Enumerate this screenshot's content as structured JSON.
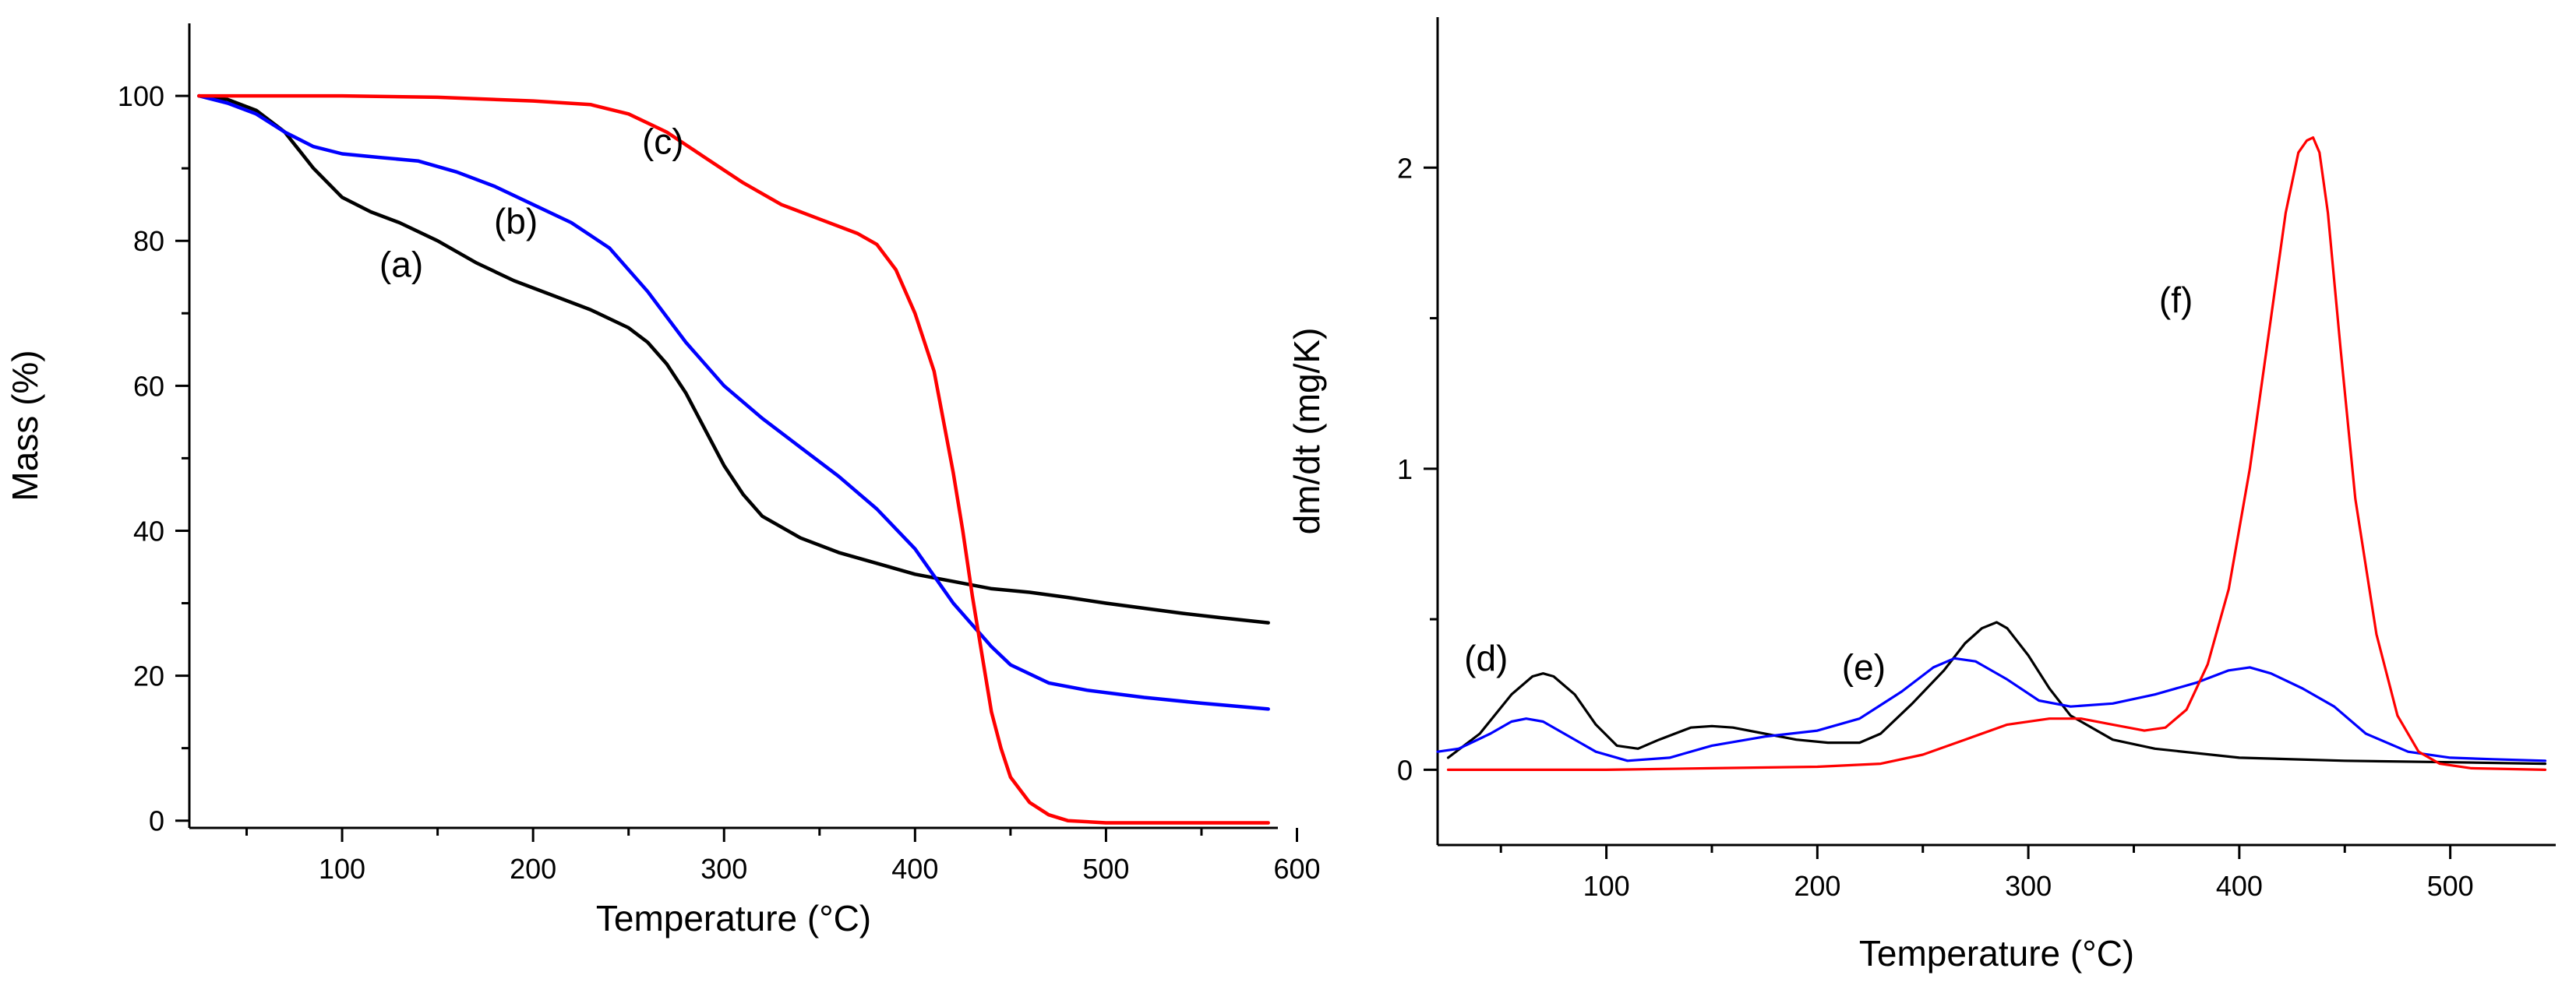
{
  "chart_data": [
    {
      "type": "line",
      "title": "",
      "xlabel": "Temperature (°C)",
      "ylabel": "Mass (%)",
      "xlim": [
        20,
        590
      ],
      "ylim": [
        -1,
        110
      ],
      "x_ticks": [
        100,
        200,
        300,
        400,
        500,
        600
      ],
      "x_minor_ticks": [
        50,
        150,
        250,
        350,
        450,
        550
      ],
      "y_ticks": [
        0,
        20,
        40,
        60,
        80,
        100
      ],
      "y_minor_ticks": [
        10,
        30,
        50,
        70,
        90
      ],
      "grid": false,
      "legend": "none",
      "series": [
        {
          "color": "#000000",
          "x": [
            25,
            40,
            55,
            70,
            85,
            100,
            115,
            130,
            150,
            170,
            190,
            210,
            230,
            250,
            260,
            270,
            280,
            290,
            300,
            310,
            320,
            340,
            360,
            380,
            400,
            420,
            440,
            460,
            480,
            500,
            520,
            540,
            560,
            585
          ],
          "y": [
            100,
            99.5,
            98,
            95,
            90,
            86,
            84,
            82.5,
            80,
            77,
            74.5,
            72.5,
            70.5,
            68,
            66,
            63,
            59,
            54,
            49,
            45,
            42,
            39,
            37,
            35.5,
            34,
            33,
            32,
            31.5,
            30.8,
            30,
            29.3,
            28.6,
            28,
            27.3
          ]
        },
        {
          "color": "#0000ff",
          "x": [
            25,
            40,
            55,
            70,
            85,
            100,
            120,
            140,
            160,
            180,
            200,
            220,
            240,
            260,
            280,
            300,
            320,
            340,
            360,
            380,
            400,
            420,
            430,
            440,
            450,
            470,
            490,
            520,
            550,
            585
          ],
          "y": [
            100,
            99,
            97.5,
            95,
            93,
            92,
            91.5,
            91,
            89.5,
            87.5,
            85,
            82.5,
            79,
            73,
            66,
            60,
            55.5,
            51.5,
            47.5,
            43,
            37.5,
            30,
            27,
            24,
            21.5,
            19,
            18,
            17,
            16.2,
            15.4
          ]
        },
        {
          "color": "#ff0000",
          "x": [
            25,
            100,
            150,
            200,
            230,
            250,
            270,
            290,
            310,
            330,
            350,
            370,
            380,
            390,
            400,
            410,
            420,
            425,
            430,
            435,
            440,
            445,
            450,
            460,
            470,
            480,
            500,
            550,
            585
          ],
          "y": [
            100,
            100,
            99.8,
            99.3,
            98.8,
            97.5,
            95,
            91.5,
            88,
            85,
            83,
            81,
            79.5,
            76,
            70,
            62,
            48,
            40,
            31,
            23,
            15,
            10,
            6,
            2.5,
            0.8,
            0,
            -0.3,
            -0.3,
            -0.3
          ]
        }
      ],
      "annotations": [
        {
          "text": "(a)",
          "x": 131,
          "y": 75
        },
        {
          "text": "(b)",
          "x": 191,
          "y": 81
        },
        {
          "text": "(c)",
          "x": 268,
          "y": 92
        }
      ]
    },
    {
      "type": "line",
      "title": "",
      "xlabel": "Temperature (°C)",
      "ylabel": "dm/dt (mg/K)",
      "xlim": [
        20,
        550
      ],
      "ylim": [
        -0.25,
        2.5
      ],
      "x_ticks": [
        100,
        200,
        300,
        400,
        500
      ],
      "x_minor_ticks": [
        50,
        150,
        250,
        350,
        450
      ],
      "y_ticks": [
        0,
        1,
        2
      ],
      "y_minor_ticks": [
        0.5,
        1.5
      ],
      "grid": false,
      "legend": "none",
      "series": [
        {
          "color": "#000000",
          "x": [
            25,
            40,
            55,
            65,
            70,
            75,
            85,
            95,
            105,
            115,
            125,
            140,
            150,
            160,
            175,
            190,
            205,
            220,
            230,
            245,
            260,
            270,
            278,
            285,
            290,
            300,
            310,
            320,
            340,
            360,
            400,
            450,
            500,
            545
          ],
          "y": [
            0.04,
            0.12,
            0.25,
            0.31,
            0.32,
            0.31,
            0.25,
            0.15,
            0.08,
            0.07,
            0.1,
            0.14,
            0.145,
            0.14,
            0.12,
            0.1,
            0.09,
            0.09,
            0.12,
            0.22,
            0.33,
            0.42,
            0.47,
            0.49,
            0.47,
            0.38,
            0.27,
            0.18,
            0.1,
            0.07,
            0.04,
            0.03,
            0.025,
            0.02
          ]
        },
        {
          "color": "#0000ff",
          "x": [
            20,
            30,
            45,
            55,
            62,
            70,
            80,
            95,
            110,
            130,
            150,
            175,
            200,
            220,
            240,
            255,
            265,
            275,
            290,
            305,
            320,
            340,
            360,
            380,
            395,
            405,
            415,
            430,
            445,
            460,
            480,
            500,
            520,
            545
          ],
          "y": [
            0.06,
            0.07,
            0.12,
            0.16,
            0.17,
            0.16,
            0.12,
            0.06,
            0.03,
            0.04,
            0.08,
            0.11,
            0.13,
            0.17,
            0.26,
            0.34,
            0.37,
            0.36,
            0.3,
            0.23,
            0.21,
            0.22,
            0.25,
            0.29,
            0.33,
            0.34,
            0.32,
            0.27,
            0.21,
            0.12,
            0.06,
            0.04,
            0.035,
            0.03
          ]
        },
        {
          "color": "#ff0000",
          "x": [
            25,
            100,
            150,
            200,
            230,
            250,
            270,
            290,
            310,
            325,
            340,
            355,
            365,
            375,
            385,
            395,
            405,
            415,
            422,
            428,
            432,
            435,
            438,
            442,
            448,
            455,
            465,
            475,
            485,
            495,
            510,
            545
          ],
          "y": [
            0,
            0,
            0.005,
            0.01,
            0.02,
            0.05,
            0.1,
            0.15,
            0.17,
            0.17,
            0.15,
            0.13,
            0.14,
            0.2,
            0.35,
            0.6,
            1.0,
            1.5,
            1.85,
            2.05,
            2.09,
            2.1,
            2.05,
            1.85,
            1.4,
            0.9,
            0.45,
            0.18,
            0.06,
            0.02,
            0.005,
            0
          ]
        }
      ],
      "annotations": [
        {
          "text": "(d)",
          "x": 43,
          "y": 0.33
        },
        {
          "text": "(e)",
          "x": 222,
          "y": 0.3
        },
        {
          "text": "(f)",
          "x": 370,
          "y": 1.52
        }
      ]
    }
  ]
}
